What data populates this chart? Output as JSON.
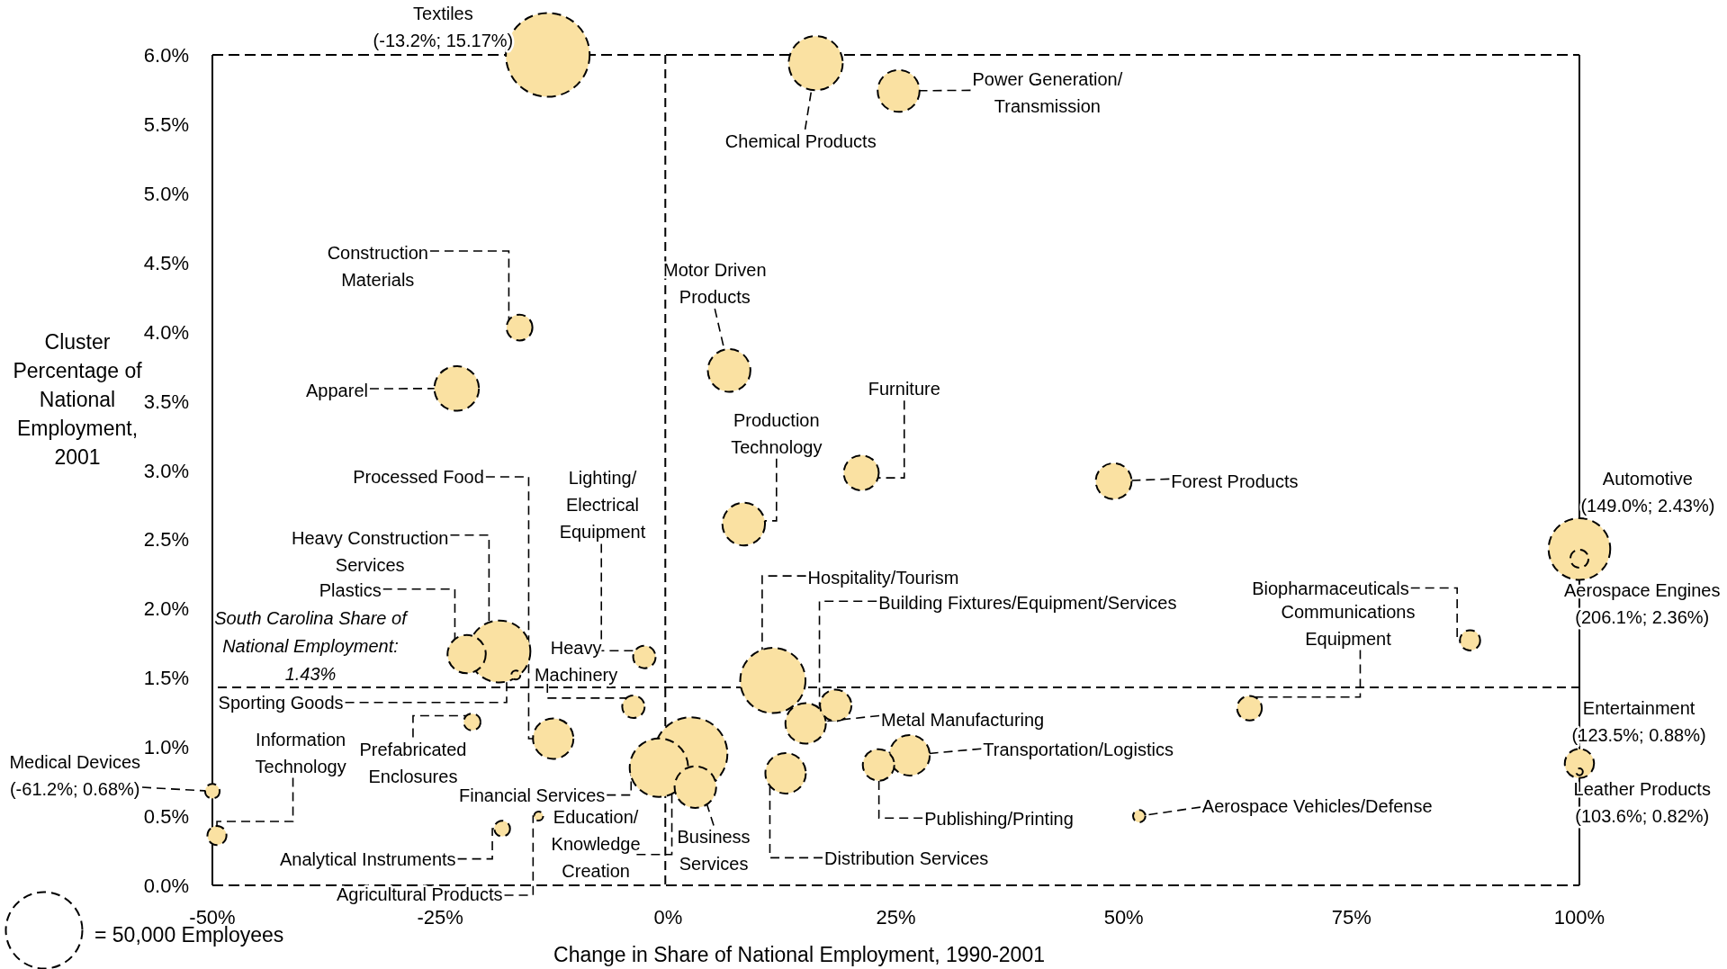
{
  "chart_data": {
    "type": "bubble",
    "xlabel": "Change in Share of National Employment, 1990-2001",
    "ylabel": "Cluster\nPercentage of\nNational\nEmployment,\n2001",
    "xlim": [
      -50,
      100
    ],
    "ylim": [
      0,
      6
    ],
    "xticks": [
      {
        "value": -50,
        "label": "-50%"
      },
      {
        "value": -25,
        "label": "-25%"
      },
      {
        "value": 0,
        "label": "0%"
      },
      {
        "value": 25,
        "label": "25%"
      },
      {
        "value": 50,
        "label": "50%"
      },
      {
        "value": 75,
        "label": "75%"
      },
      {
        "value": 100,
        "label": "100%"
      }
    ],
    "yticks": [
      {
        "value": 0,
        "label": "0.0%"
      },
      {
        "value": 0.5,
        "label": "0.5%"
      },
      {
        "value": 1,
        "label": "1.0%"
      },
      {
        "value": 1.5,
        "label": "1.5%"
      },
      {
        "value": 2,
        "label": "2.0%"
      },
      {
        "value": 2.5,
        "label": "2.5%"
      },
      {
        "value": 3,
        "label": "3.0%"
      },
      {
        "value": 3.5,
        "label": "3.5%"
      },
      {
        "value": 4,
        "label": "4.0%"
      },
      {
        "value": 4.5,
        "label": "4.5%"
      },
      {
        "value": 5,
        "label": "5.0%"
      },
      {
        "value": 5.5,
        "label": "5.5%"
      },
      {
        "value": 6,
        "label": "6.0%"
      }
    ],
    "color": "#fae1a2",
    "x": [
      -13.2,
      16.2,
      25.3,
      -16.3,
      -23.2,
      6.7,
      8.3,
      21.2,
      48.9,
      100,
      100,
      88.0,
      63.8,
      100,
      100,
      51.7,
      26.5,
      23.1,
      15.1,
      18.4,
      11.5,
      12.9,
      2.5,
      3.0,
      -1.0,
      -3.8,
      -2.6,
      -12.6,
      -18.5,
      -22.1,
      -16.7,
      -21.5,
      -49.5,
      -50,
      -18.2,
      -14.2
    ],
    "values": [
      6.0,
      5.94,
      5.74,
      4.03,
      3.59,
      3.72,
      2.61,
      2.98,
      2.92,
      2.43,
      2.36,
      1.77,
      1.28,
      0.88,
      0.82,
      0.5,
      0.94,
      0.87,
      1.17,
      1.3,
      1.48,
      0.81,
      0.95,
      0.71,
      0.85,
      1.29,
      1.65,
      1.06,
      1.69,
      1.67,
      1.52,
      1.18,
      0.36,
      0.68,
      0.41,
      0.5
    ],
    "sizes": [
      60000,
      25000,
      15000,
      5700,
      17000,
      15500,
      15500,
      10500,
      11000,
      32500,
      2800,
      3500,
      5200,
      7300,
      400,
      1300,
      14000,
      8500,
      14000,
      8500,
      36400,
      14000,
      45700,
      14800,
      29200,
      4300,
      4300,
      14000,
      32700,
      12500,
      700,
      2400,
      3100,
      1800,
      2100,
      700
    ],
    "size_legend": [
      {
        "value": 50000,
        "label": "= 50,000 Employees"
      }
    ],
    "ref_lines": [
      {
        "axis": "x",
        "value": -0.3,
        "line_style": "dashed"
      },
      {
        "axis": "y",
        "value": 1.43,
        "label": "South Carolina Share of National Employment: 1.43%",
        "line_style": "dashed"
      }
    ],
    "annotations": [
      {
        "text": "Textiles\n(-13.2%; 15.17%)",
        "x": -13.2,
        "y": 6.0
      },
      {
        "text": "Chemical Products",
        "x": 16.2,
        "y": 5.94
      },
      "Power Generation/\nTransmission",
      {
        "text": "Construction\nMaterials",
        "x": -16.3,
        "y": 4.03
      },
      "Apparel",
      {
        "text": "Motor Driven\nProducts",
        "x": 6.7,
        "y": 3.72
      },
      {
        "text": "Production\nTechnology",
        "x": 8.3,
        "y": 2.61
      },
      {
        "text": "Furniture",
        "x": 21.2,
        "y": 2.98
      },
      "Forest Products",
      {
        "text": "Automotive\n(149.0%; 2.43%)",
        "x": 100,
        "y": 2.43
      },
      {
        "text": "Aerospace Engines\n(206.1%; 2.36%)",
        "x": 100,
        "y": 2.36
      },
      {
        "text": "Biopharmaceuticals",
        "x": 88.0,
        "y": 1.77
      },
      {
        "text": "Communications\nEquipment",
        "x": 63.8,
        "y": 1.28
      },
      {
        "text": "Entertainment\n(123.5%; 0.88%)",
        "x": 100,
        "y": 0.88
      },
      {
        "text": "Leather Products\n(103.6%; 0.82%)",
        "x": 100,
        "y": 0.82
      },
      {
        "text": "Aerospace Vehicles/Defense",
        "x": 51.7,
        "y": 0.5
      },
      "Transportation/Logistics",
      {
        "text": "Publishing/Printing",
        "x": 23.1,
        "y": 0.87
      },
      {
        "text": "Metal Manufacturing",
        "x": 15.1,
        "y": 1.17
      },
      {
        "text": "Building Fixtures/Equipment/Services",
        "x": 18.4,
        "y": 1.3
      },
      {
        "text": "Hospitality/Tourism",
        "x": 11.5,
        "y": 1.48
      },
      {
        "text": "Distribution Services",
        "x": 12.9,
        "y": 0.81
      },
      {
        "text": "Business\nServices",
        "x": 2.5,
        "y": 0.95
      },
      {
        "text": "Education/\nKnowledge\nCreation",
        "x": 3.0,
        "y": 0.71
      },
      {
        "text": "Financial Services",
        "x": -1.0,
        "y": 0.85
      },
      {
        "text": "Heavy\nMachinery",
        "x": -3.8,
        "y": 1.29
      },
      {
        "text": "Lighting/\nElectrical\nEquipment",
        "x": -2.6,
        "y": 1.65
      },
      {
        "text": "Processed Food",
        "x": -12.6,
        "y": 1.06
      },
      {
        "text": "Heavy Construction\nServices",
        "x": -18.5,
        "y": 1.69
      },
      {
        "text": "Plastics",
        "x": -22.1,
        "y": 1.67
      },
      {
        "text": "Sporting Goods",
        "x": -16.7,
        "y": 1.52
      },
      {
        "text": "Prefabricated\nEnclosures",
        "x": -21.5,
        "y": 1.18
      },
      {
        "text": "Information\nTechnology",
        "x": -49.5,
        "y": 0.36
      },
      {
        "text": "Medical Devices\n(-61.2%; 0.68%)",
        "x": -50,
        "y": 0.68
      },
      {
        "text": "Analytical Instruments",
        "x": -18.2,
        "y": 0.41
      },
      {
        "text": "Agricultural Products",
        "x": -14.2,
        "y": 0.5
      }
    ]
  }
}
